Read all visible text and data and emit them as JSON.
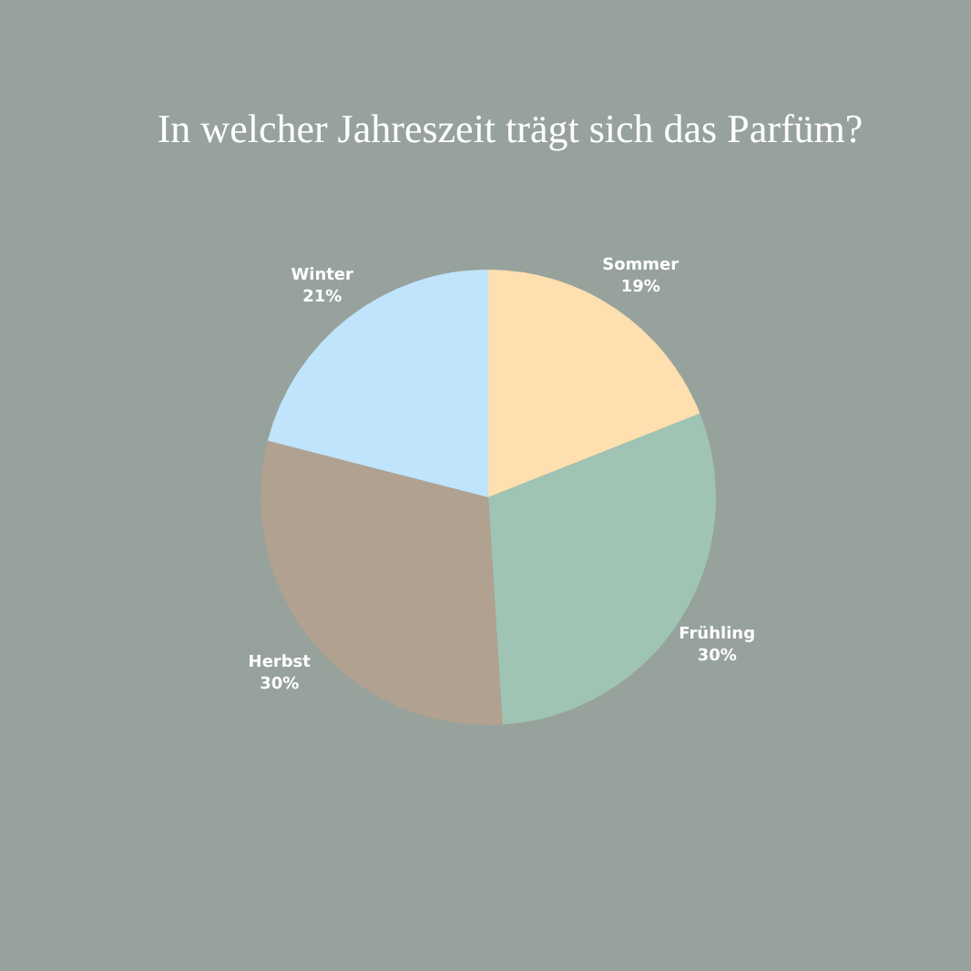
{
  "chart_data": {
    "type": "pie",
    "title": "In welcher Jahreszeit trägt sich das Parfüm?",
    "categories": [
      "Sommer",
      "Frühling",
      "Herbst",
      "Winter"
    ],
    "values": [
      19,
      30,
      30,
      21
    ],
    "value_labels": [
      "19%",
      "30%",
      "30%",
      "21%"
    ],
    "colors": [
      "#fddfb0",
      "#a0c4b4",
      "#b0a190",
      "#c0e4fc"
    ],
    "legend": false
  }
}
